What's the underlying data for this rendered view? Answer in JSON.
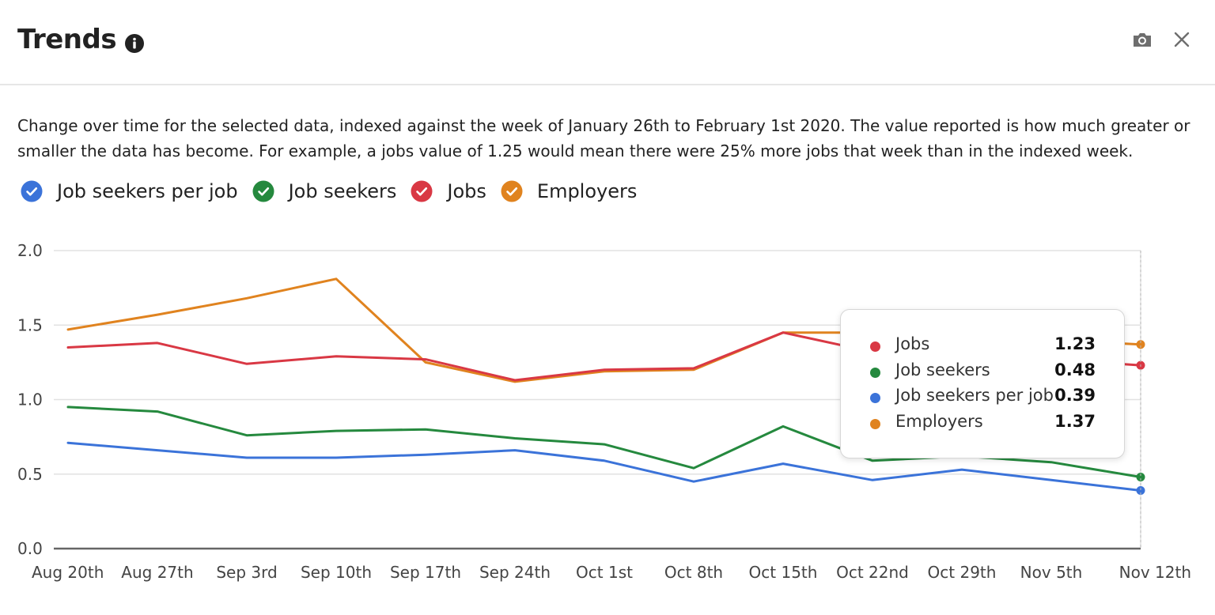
{
  "header": {
    "title": "Trends",
    "info_icon": "info-circle-icon",
    "camera_icon": "camera-icon",
    "close_icon": "close-icon"
  },
  "description": "Change over time for the selected data, indexed against the week of January 26th to February 1st 2020. The value reported is how much greater or smaller the data has become. For example, a jobs value of 1.25 would mean there were 25% more jobs that week than in the indexed week.",
  "legend": [
    {
      "label": "Job seekers per job",
      "color": "#3b73d9"
    },
    {
      "label": "Job seekers",
      "color": "#25893e"
    },
    {
      "label": "Jobs",
      "color": "#d93844"
    },
    {
      "label": "Employers",
      "color": "#e0831f"
    }
  ],
  "tooltip": {
    "rows": [
      {
        "label": "Jobs",
        "value": "1.23",
        "color": "#d93844"
      },
      {
        "label": "Job seekers",
        "value": "0.48",
        "color": "#25893e"
      },
      {
        "label": "Job seekers per job",
        "value": "0.39",
        "color": "#3b73d9"
      },
      {
        "label": "Employers",
        "value": "1.37",
        "color": "#e0831f"
      }
    ]
  },
  "chart_data": {
    "type": "line",
    "categories": [
      "Aug 20th",
      "Aug 27th",
      "Sep 3rd",
      "Sep 10th",
      "Sep 17th",
      "Sep 24th",
      "Oct 1st",
      "Oct 8th",
      "Oct 15th",
      "Oct 22nd",
      "Oct 29th",
      "Nov 5th",
      "Nov 12th"
    ],
    "ylim": [
      0,
      2
    ],
    "yticks": [
      "0.0",
      "0.5",
      "1.0",
      "1.5",
      "2.0"
    ],
    "grid": true,
    "legend_position": "top-left",
    "series": [
      {
        "name": "Employers",
        "color": "#e0831f",
        "values": [
          1.47,
          1.57,
          1.68,
          1.81,
          1.25,
          1.12,
          1.19,
          1.2,
          1.45,
          1.45,
          1.43,
          1.4,
          1.37
        ]
      },
      {
        "name": "Jobs",
        "color": "#d93844",
        "values": [
          1.35,
          1.38,
          1.24,
          1.29,
          1.27,
          1.13,
          1.2,
          1.21,
          1.45,
          1.32,
          1.3,
          1.27,
          1.23
        ]
      },
      {
        "name": "Job seekers",
        "color": "#25893e",
        "values": [
          0.95,
          0.92,
          0.76,
          0.79,
          0.8,
          0.74,
          0.7,
          0.54,
          0.82,
          0.59,
          0.62,
          0.58,
          0.48
        ]
      },
      {
        "name": "Job seekers per job",
        "color": "#3b73d9",
        "values": [
          0.71,
          0.66,
          0.61,
          0.61,
          0.63,
          0.66,
          0.59,
          0.45,
          0.57,
          0.46,
          0.53,
          0.46,
          0.39
        ]
      }
    ]
  }
}
